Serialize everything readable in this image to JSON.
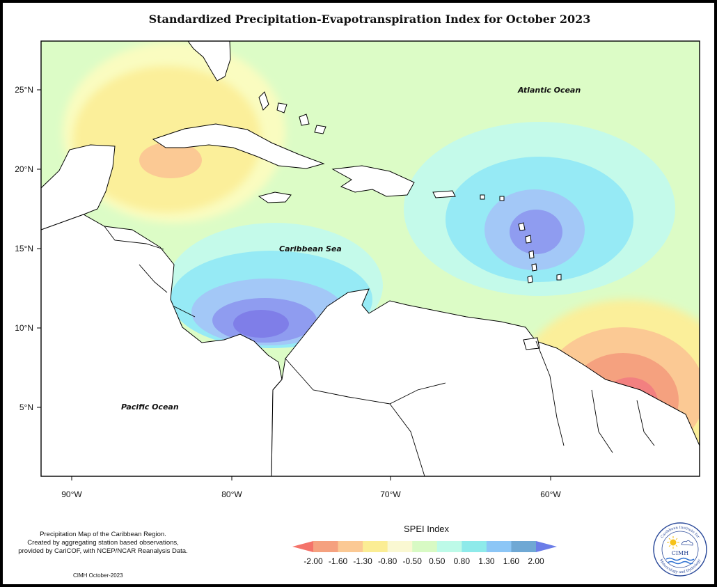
{
  "title": "Standardized Precipitation-Evapotranspiration Index for October 2023",
  "axes": {
    "lat_labels": [
      "25°N",
      "20°N",
      "15°N",
      "10°N",
      "5°N"
    ],
    "lon_labels": [
      "90°W",
      "80°W",
      "70°W",
      "60°W"
    ]
  },
  "map_labels": {
    "atlantic": "Atlantic Ocean",
    "caribbean": "Caribbean Sea",
    "pacific": "Pacific Ocean"
  },
  "notes": {
    "line1": "Precipitation Map of the Caribbean Region.",
    "line2": "Created by aggregating station based observations,",
    "line3": "provided by CariCOF, with NCEP/NCAR Reanalysis Data."
  },
  "footer": "CIMH October-2023",
  "legend": {
    "title": "SPEI Index",
    "ticks": [
      "-2.00",
      "-1.60",
      "-1.30",
      "-0.80",
      "-0.50",
      "0.50",
      "0.80",
      "1.30",
      "1.60",
      "2.00"
    ],
    "colors": [
      "#f4736a",
      "#f5a17f",
      "#fbc994",
      "#fbed94",
      "#faf8d2",
      "#d8fac4",
      "#bdfae8",
      "#8eeaea",
      "#8cc6f6",
      "#6fa8d4",
      "#6b7de8"
    ]
  },
  "logo": {
    "ring_text_top": "Caribbean Institute for",
    "ring_text_bottom": "Meteorology and Hydrology",
    "abbr": "CIMH"
  }
}
